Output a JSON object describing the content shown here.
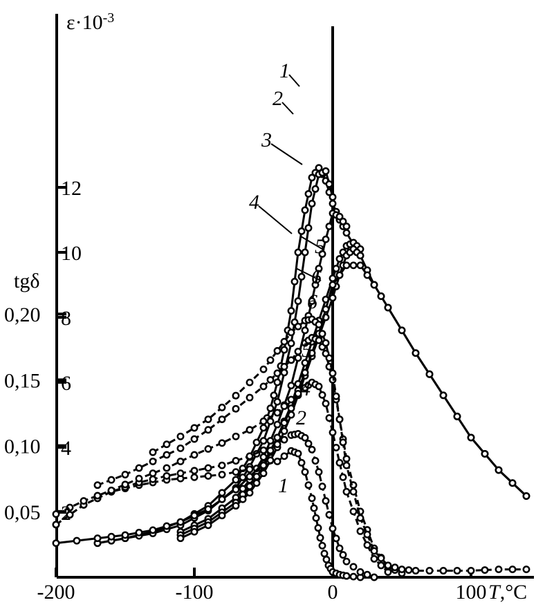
{
  "chart_data": {
    "type": "line",
    "x_axis": {
      "label_italic": "T",
      "label_unit": ",°C",
      "ticks": [
        -200,
        -100,
        0,
        100
      ],
      "tick_labels": [
        "-200",
        "-100",
        "0",
        "100"
      ],
      "xlim": [
        -200,
        140
      ]
    },
    "y_axis_eps": {
      "label": "ε·10",
      "label_exp": "-3",
      "ticks": [
        2,
        4,
        6,
        8,
        10,
        12
      ],
      "tick_labels": [
        "2",
        "4",
        "6",
        "8",
        "10",
        "12"
      ],
      "ylim": [
        0,
        12.8
      ]
    },
    "y_axis_tan": {
      "label": "tgδ",
      "ticks": [
        0.05,
        0.1,
        0.15,
        0.2
      ],
      "tick_labels": [
        "0,05",
        "0,10",
        "0,15",
        "0,20"
      ],
      "ylim": [
        0,
        0.2
      ]
    },
    "series_eps": [
      {
        "name": "1",
        "x": [
          -170,
          -150,
          -130,
          -110,
          -90,
          -70,
          -60,
          -50,
          -45,
          -40,
          -35,
          -30,
          -25,
          -20,
          -15,
          -10,
          -5,
          0,
          5,
          10,
          20,
          30,
          40,
          60,
          80,
          100,
          120,
          140
        ],
        "y": [
          1.05,
          1.2,
          1.4,
          1.7,
          2.2,
          3.0,
          3.7,
          4.6,
          5.2,
          6.0,
          7.0,
          8.2,
          10.0,
          11.3,
          12.3,
          12.6,
          12.2,
          11.5,
          11.0,
          10.6,
          9.9,
          9.0,
          8.3,
          6.9,
          5.6,
          4.3,
          3.3,
          2.5
        ]
      },
      {
        "name": "2",
        "x": [
          -170,
          -150,
          -130,
          -110,
          -90,
          -70,
          -60,
          -50,
          -40,
          -30,
          -25,
          -20,
          -15,
          -10,
          -5,
          0
        ],
        "y": [
          1.05,
          1.2,
          1.35,
          1.6,
          2.05,
          2.75,
          3.4,
          4.2,
          5.4,
          7.2,
          8.5,
          10.0,
          11.5,
          12.4,
          12.5,
          11.7
        ]
      },
      {
        "name": "3",
        "x": [
          -110,
          -90,
          -70,
          -60,
          -50,
          -40,
          -30,
          -20,
          -15,
          -10,
          -5,
          0,
          5,
          10
        ],
        "y": [
          1.4,
          1.8,
          2.45,
          3.0,
          3.7,
          4.7,
          5.9,
          7.6,
          8.5,
          9.5,
          10.4,
          11.2,
          11.1,
          10.8
        ]
      },
      {
        "name": "4",
        "x": [
          -110,
          -90,
          -70,
          -60,
          -50,
          -40,
          -30,
          -20,
          -10,
          0,
          5,
          10,
          15,
          20
        ],
        "y": [
          1.3,
          1.7,
          2.3,
          2.8,
          3.4,
          4.3,
          5.3,
          6.6,
          7.9,
          9.2,
          9.8,
          10.2,
          10.3,
          10.1
        ]
      },
      {
        "name": "5",
        "x": [
          -110,
          -90,
          -70,
          -60,
          -50,
          -40,
          -30,
          -20,
          -10,
          0,
          5,
          10,
          15,
          20
        ],
        "y": [
          1.2,
          1.6,
          2.2,
          2.6,
          3.2,
          4.0,
          5.0,
          6.2,
          7.4,
          8.6,
          9.3,
          9.9,
          10.1,
          9.9
        ]
      },
      {
        "name": "6",
        "x": [
          -200,
          -170,
          -150,
          -130,
          -110,
          -90,
          -70,
          -50,
          -40,
          -30,
          -20,
          -10,
          0,
          10,
          20,
          30,
          40,
          60,
          80,
          100,
          120,
          140
        ],
        "y": [
          1.05,
          1.2,
          1.3,
          1.45,
          1.7,
          2.1,
          2.7,
          3.5,
          4.3,
          5.2,
          6.3,
          7.5,
          9.0,
          9.6,
          9.6,
          9.0,
          8.3,
          6.9,
          5.6,
          4.3,
          3.3,
          2.5
        ]
      }
    ],
    "series_tan": [
      {
        "name": "1",
        "x": [
          -200,
          -180,
          -160,
          -140,
          -120,
          -100,
          -80,
          -60,
          -40,
          -30,
          -25,
          -20,
          -15,
          -12,
          -9,
          -6,
          -3,
          0,
          5,
          10,
          20
        ],
        "y": [
          0.04,
          0.055,
          0.065,
          0.07,
          0.074,
          0.076,
          0.078,
          0.082,
          0.088,
          0.096,
          0.094,
          0.08,
          0.06,
          0.045,
          0.03,
          0.018,
          0.009,
          0.004,
          0.002,
          0.001,
          0
        ]
      },
      {
        "name": "2",
        "x": [
          -200,
          -180,
          -160,
          -140,
          -120,
          -100,
          -80,
          -60,
          -40,
          -30,
          -25,
          -20,
          -15,
          -10,
          -5,
          0,
          5,
          10,
          20,
          30
        ],
        "y": [
          0.04,
          0.055,
          0.065,
          0.072,
          0.077,
          0.081,
          0.085,
          0.092,
          0.101,
          0.108,
          0.109,
          0.106,
          0.097,
          0.08,
          0.058,
          0.037,
          0.022,
          0.012,
          0.004,
          0
        ]
      },
      {
        "name": "4",
        "x": [
          -200,
          -180,
          -160,
          -140,
          -120,
          -100,
          -80,
          -60,
          -40,
          -30,
          -20,
          -15,
          -10,
          -5,
          0,
          5,
          10,
          20,
          30,
          40
        ],
        "y": [
          0.048,
          0.058,
          0.066,
          0.075,
          0.083,
          0.093,
          0.102,
          0.112,
          0.125,
          0.135,
          0.144,
          0.148,
          0.145,
          0.132,
          0.11,
          0.087,
          0.065,
          0.035,
          0.014,
          0.004
        ]
      },
      {
        "name": "5",
        "x": [
          -170,
          -150,
          -130,
          -110,
          -90,
          -70,
          -50,
          -40,
          -30,
          -20,
          -15,
          -10,
          -5,
          0,
          5,
          10,
          20,
          30,
          40,
          50
        ],
        "y": [
          0.07,
          0.078,
          0.088,
          0.098,
          0.112,
          0.128,
          0.145,
          0.155,
          0.165,
          0.178,
          0.182,
          0.18,
          0.17,
          0.15,
          0.12,
          0.09,
          0.05,
          0.022,
          0.008,
          0.003
        ]
      },
      {
        "name": "6",
        "x": [
          -130,
          -110,
          -90,
          -70,
          -50,
          -40,
          -30,
          -20,
          -15,
          -10,
          -5,
          0,
          5,
          10,
          20,
          30,
          40,
          50,
          60,
          80,
          100,
          120,
          140
        ],
        "y": [
          0.095,
          0.107,
          0.12,
          0.138,
          0.158,
          0.172,
          0.186,
          0.195,
          0.196,
          0.192,
          0.178,
          0.155,
          0.12,
          0.085,
          0.045,
          0.02,
          0.009,
          0.006,
          0.005,
          0.005,
          0.005,
          0.006,
          0.006
        ]
      }
    ],
    "grid": false,
    "legend": "none"
  }
}
